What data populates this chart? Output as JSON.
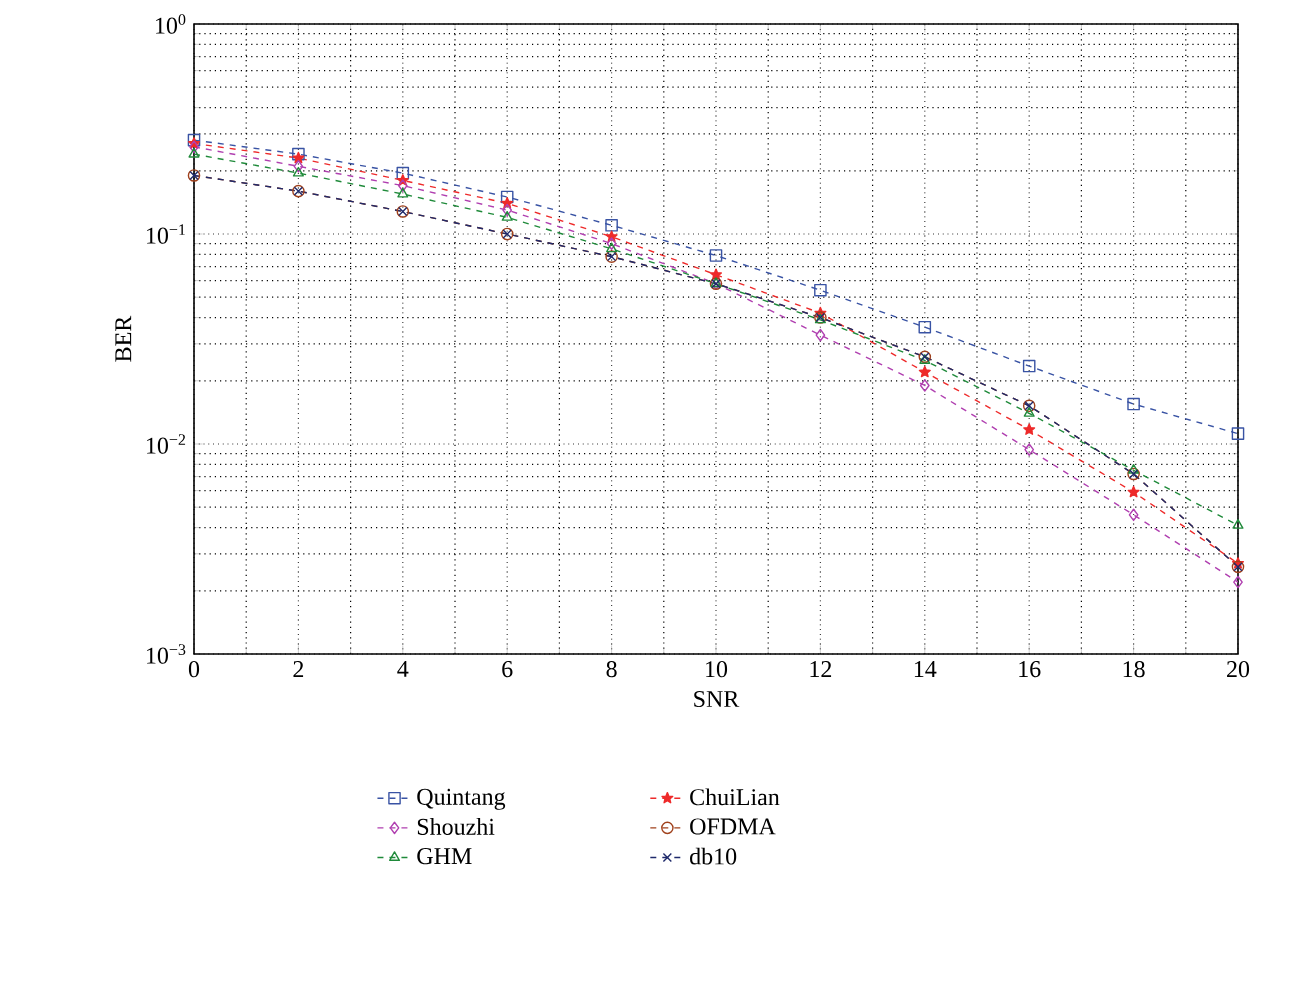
{
  "chart_data": {
    "type": "line",
    "xlabel": "SNR",
    "ylabel": "BER",
    "log": "y",
    "grid": true,
    "legend": "bottom",
    "line_style": "dashed",
    "x": [
      0,
      2,
      4,
      6,
      8,
      10,
      12,
      14,
      16,
      18,
      20
    ],
    "xlim": [
      0,
      20
    ],
    "xticks": [
      0,
      2,
      4,
      6,
      8,
      10,
      12,
      14,
      16,
      18,
      20
    ],
    "ylim": [
      0.001,
      1
    ],
    "yticks": [
      {
        "value": 0.001,
        "label": "10$^{−3}$"
      },
      {
        "value": 0.01,
        "label": "10$^{−2}$"
      },
      {
        "value": 0.1,
        "label": "10$^{−1}$"
      },
      {
        "value": 1,
        "label": "10$^{0}$"
      }
    ],
    "series": [
      {
        "name": "Quintang",
        "color": "#3953a4",
        "marker": "square",
        "values": [
          0.28,
          0.24,
          0.195,
          0.15,
          0.11,
          0.079,
          0.054,
          0.036,
          0.0235,
          0.0155,
          0.0112
        ]
      },
      {
        "name": "Shouzhi",
        "color": "#b03fb0",
        "marker": "diamond",
        "values": [
          0.26,
          0.21,
          0.17,
          0.13,
          0.09,
          0.058,
          0.033,
          0.019,
          0.0094,
          0.0046,
          0.0022
        ]
      },
      {
        "name": "GHM",
        "color": "#1f8a3a",
        "marker": "triangle",
        "values": [
          0.24,
          0.195,
          0.155,
          0.12,
          0.085,
          0.058,
          0.039,
          0.025,
          0.014,
          0.0075,
          0.0041
        ]
      },
      {
        "name": "ChuiLian",
        "color": "#ee2a2a",
        "marker": "star",
        "values": [
          0.27,
          0.23,
          0.18,
          0.14,
          0.097,
          0.064,
          0.042,
          0.022,
          0.0117,
          0.0059,
          0.0027
        ]
      },
      {
        "name": "OFDMA",
        "color": "#a0411c",
        "marker": "circle",
        "values": [
          0.19,
          0.16,
          0.128,
          0.1,
          0.078,
          0.058,
          0.04,
          0.026,
          0.0152,
          0.0072,
          0.0026
        ]
      },
      {
        "name": "db10",
        "color": "#1f2a6b",
        "marker": "cross",
        "values": [
          0.19,
          0.16,
          0.128,
          0.1,
          0.078,
          0.058,
          0.04,
          0.026,
          0.0152,
          0.0072,
          0.0026
        ]
      }
    ]
  }
}
